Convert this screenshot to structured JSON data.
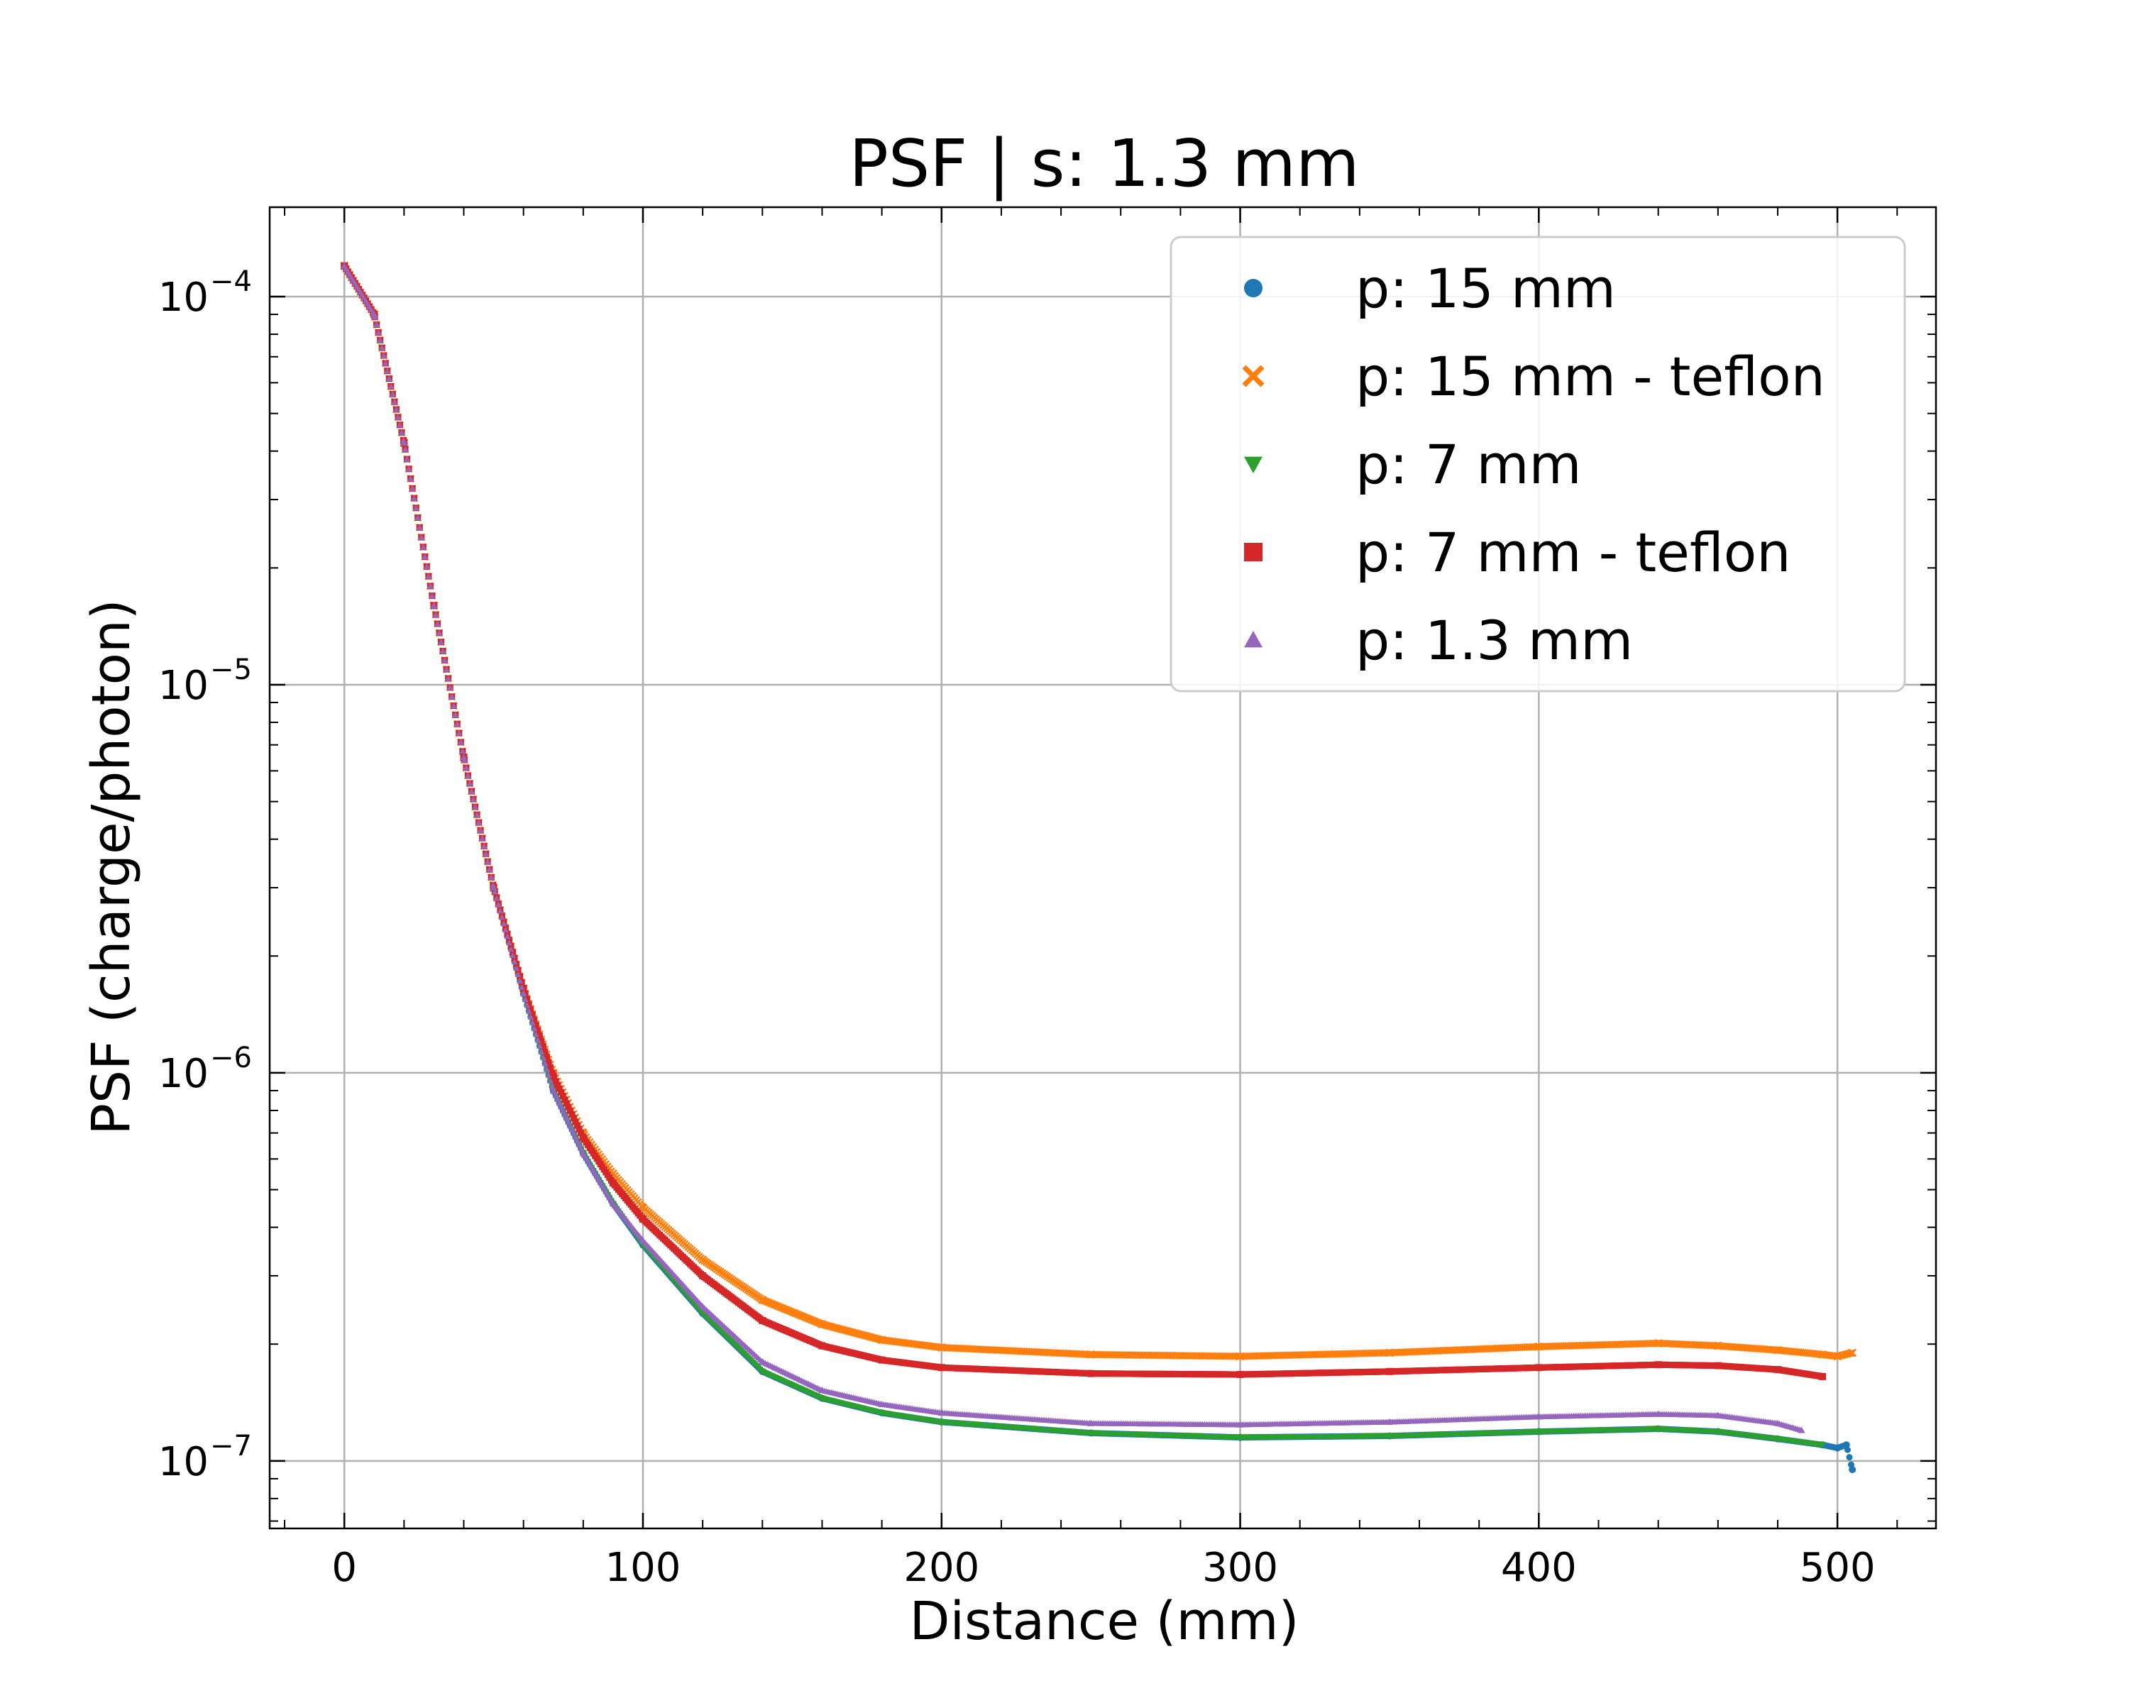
{
  "chart_data": {
    "type": "scatter",
    "title": "PSF | s: 1.3 mm",
    "xlabel": "Distance (mm)",
    "ylabel": "PSF (charge/photon)",
    "xlim": [
      -25,
      533
    ],
    "ylim": [
      6.7e-08,
      0.00017
    ],
    "yscale": "log",
    "grid": true,
    "legend_position": "top-right",
    "x_ticks": [
      0,
      100,
      200,
      300,
      400,
      500
    ],
    "x_tick_labels": [
      "0",
      "100",
      "200",
      "300",
      "400",
      "500"
    ],
    "y_ticks": [
      1e-07,
      1e-06,
      1e-05,
      0.0001
    ],
    "y_tick_labels": [
      {
        "base": "10",
        "exp": "−7"
      },
      {
        "base": "10",
        "exp": "−6"
      },
      {
        "base": "10",
        "exp": "−5"
      },
      {
        "base": "10",
        "exp": "−4"
      }
    ],
    "series": [
      {
        "name": "p: 15 mm",
        "color": "#1f77b4",
        "marker": "circle",
        "x": [
          0,
          10,
          20,
          30,
          40,
          50,
          60,
          70,
          80,
          90,
          100,
          120,
          140,
          160,
          180,
          200,
          250,
          300,
          350,
          400,
          440,
          460,
          480,
          495,
          500,
          503,
          505
        ],
        "y": [
          0.00012,
          9e-05,
          4.2e-05,
          1.6e-05,
          6.5e-06,
          3e-06,
          1.6e-06,
          9e-07,
          6.2e-07,
          4.6e-07,
          3.6e-07,
          2.4e-07,
          1.7e-07,
          1.45e-07,
          1.33e-07,
          1.26e-07,
          1.18e-07,
          1.15e-07,
          1.16e-07,
          1.19e-07,
          1.21e-07,
          1.19e-07,
          1.14e-07,
          1.1e-07,
          1.08e-07,
          1.1e-07,
          9.5e-08
        ]
      },
      {
        "name": "p: 15 mm - teflon",
        "color": "#ff7f0e",
        "marker": "x",
        "x": [
          0,
          10,
          20,
          30,
          40,
          50,
          60,
          70,
          80,
          90,
          100,
          120,
          140,
          160,
          180,
          200,
          250,
          300,
          350,
          400,
          440,
          460,
          480,
          495,
          500,
          505
        ],
        "y": [
          0.00012,
          9e-05,
          4.2e-05,
          1.6e-05,
          6.5e-06,
          3e-06,
          1.65e-06,
          1e-06,
          7e-07,
          5.5e-07,
          4.5e-07,
          3.3e-07,
          2.6e-07,
          2.25e-07,
          2.05e-07,
          1.96e-07,
          1.88e-07,
          1.86e-07,
          1.9e-07,
          1.97e-07,
          2.01e-07,
          1.98e-07,
          1.93e-07,
          1.88e-07,
          1.86e-07,
          1.9e-07
        ]
      },
      {
        "name": "p: 7 mm",
        "color": "#2ca02c",
        "marker": "triangle-down",
        "x": [
          0,
          10,
          20,
          30,
          40,
          50,
          60,
          70,
          80,
          90,
          100,
          120,
          140,
          160,
          180,
          200,
          250,
          300,
          350,
          400,
          440,
          460,
          480,
          495
        ],
        "y": [
          0.00012,
          9e-05,
          4.2e-05,
          1.6e-05,
          6.5e-06,
          3e-06,
          1.6e-06,
          9e-07,
          6.2e-07,
          4.6e-07,
          3.6e-07,
          2.4e-07,
          1.7e-07,
          1.45e-07,
          1.33e-07,
          1.26e-07,
          1.18e-07,
          1.15e-07,
          1.16e-07,
          1.19e-07,
          1.21e-07,
          1.19e-07,
          1.14e-07,
          1.1e-07
        ]
      },
      {
        "name": "p: 7 mm - teflon",
        "color": "#d62728",
        "marker": "square",
        "x": [
          0,
          10,
          20,
          30,
          40,
          50,
          60,
          70,
          80,
          90,
          100,
          120,
          140,
          160,
          180,
          200,
          250,
          300,
          350,
          400,
          440,
          460,
          480,
          495
        ],
        "y": [
          0.00012,
          9e-05,
          4.2e-05,
          1.6e-05,
          6.5e-06,
          3e-06,
          1.65e-06,
          9.8e-07,
          6.8e-07,
          5.2e-07,
          4.2e-07,
          3e-07,
          2.3e-07,
          1.98e-07,
          1.82e-07,
          1.74e-07,
          1.68e-07,
          1.67e-07,
          1.7e-07,
          1.74e-07,
          1.77e-07,
          1.76e-07,
          1.72e-07,
          1.65e-07
        ]
      },
      {
        "name": "p: 1.3 mm",
        "color": "#9467bd",
        "marker": "triangle-up",
        "x": [
          0,
          10,
          20,
          30,
          40,
          50,
          60,
          70,
          80,
          90,
          100,
          120,
          140,
          160,
          180,
          200,
          250,
          300,
          350,
          400,
          440,
          460,
          480,
          488
        ],
        "y": [
          0.00012,
          9e-05,
          4.2e-05,
          1.6e-05,
          6.5e-06,
          3e-06,
          1.6e-06,
          9e-07,
          6.2e-07,
          4.6e-07,
          3.7e-07,
          2.5e-07,
          1.8e-07,
          1.52e-07,
          1.4e-07,
          1.33e-07,
          1.25e-07,
          1.24e-07,
          1.26e-07,
          1.3e-07,
          1.32e-07,
          1.31e-07,
          1.25e-07,
          1.2e-07
        ]
      }
    ]
  }
}
